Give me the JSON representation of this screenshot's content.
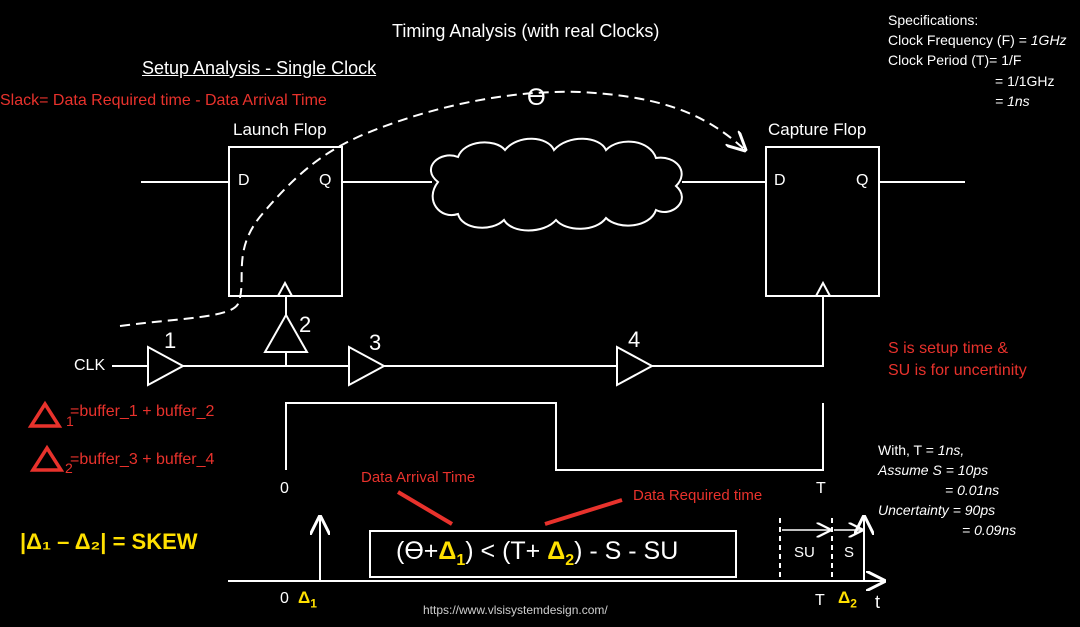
{
  "title": "Timing Analysis (with real Clocks)",
  "subtitle": "Setup Analysis - Single Clock",
  "slack_formula": "Slack= Data Required time - Data Arrival Time",
  "specs": {
    "heading": "Specifications:",
    "line1_label": "Clock Frequency (F) = ",
    "line1_value": "1GHz",
    "line2": "Clock Period (T)= 1/F",
    "line3": "= 1/1GHz",
    "line4": "= 1ns"
  },
  "flops": {
    "launch_label": "Launch Flop",
    "capture_label": "Capture Flop",
    "d_pin": "D",
    "q_pin": "Q"
  },
  "theta": "ϴ",
  "clk_label": "CLK",
  "buffers": [
    "1",
    "2",
    "3",
    "4"
  ],
  "setup_note": {
    "line1": "S is setup time &",
    "line2": "SU is for uncertinity"
  },
  "delta1_def": {
    "sub": "1",
    "text": "=buffer_1 + buffer_2"
  },
  "delta2_def": {
    "sub": "2",
    "text": "=buffer_3 + buffer_4"
  },
  "skew": "|Δ₁ – Δ₂| = SKEW",
  "waveform": {
    "zero": "0",
    "t": "T"
  },
  "arrival_label": "Data Arrival Time",
  "required_label": "Data Required time",
  "equation": {
    "p1": "(ϴ+",
    "d1": "Δ",
    "s1": "1",
    "p2": ") < (T+ ",
    "d2": "Δ",
    "s2": "2",
    "p3": ") - S - SU"
  },
  "with_block": {
    "l1_a": "With, T = ",
    "l1_b": "1ns,",
    "l2": "Assume S = 10ps",
    "l3": "= 0.01ns",
    "l4": "Uncertainty = 90ps",
    "l5": "= 0.09ns"
  },
  "timeline": {
    "zero": "0",
    "delta1": "Δ",
    "delta1_sub": "1",
    "t": "T",
    "delta2": "Δ",
    "delta2_sub": "2",
    "axis": "t",
    "su": "SU",
    "s": "S"
  },
  "url": "https://www.vlsisystemdesign.com/",
  "colors": {
    "bg": "#000000",
    "fg": "#ffffff",
    "red": "#e8322c",
    "yellow": "#ffe000"
  }
}
